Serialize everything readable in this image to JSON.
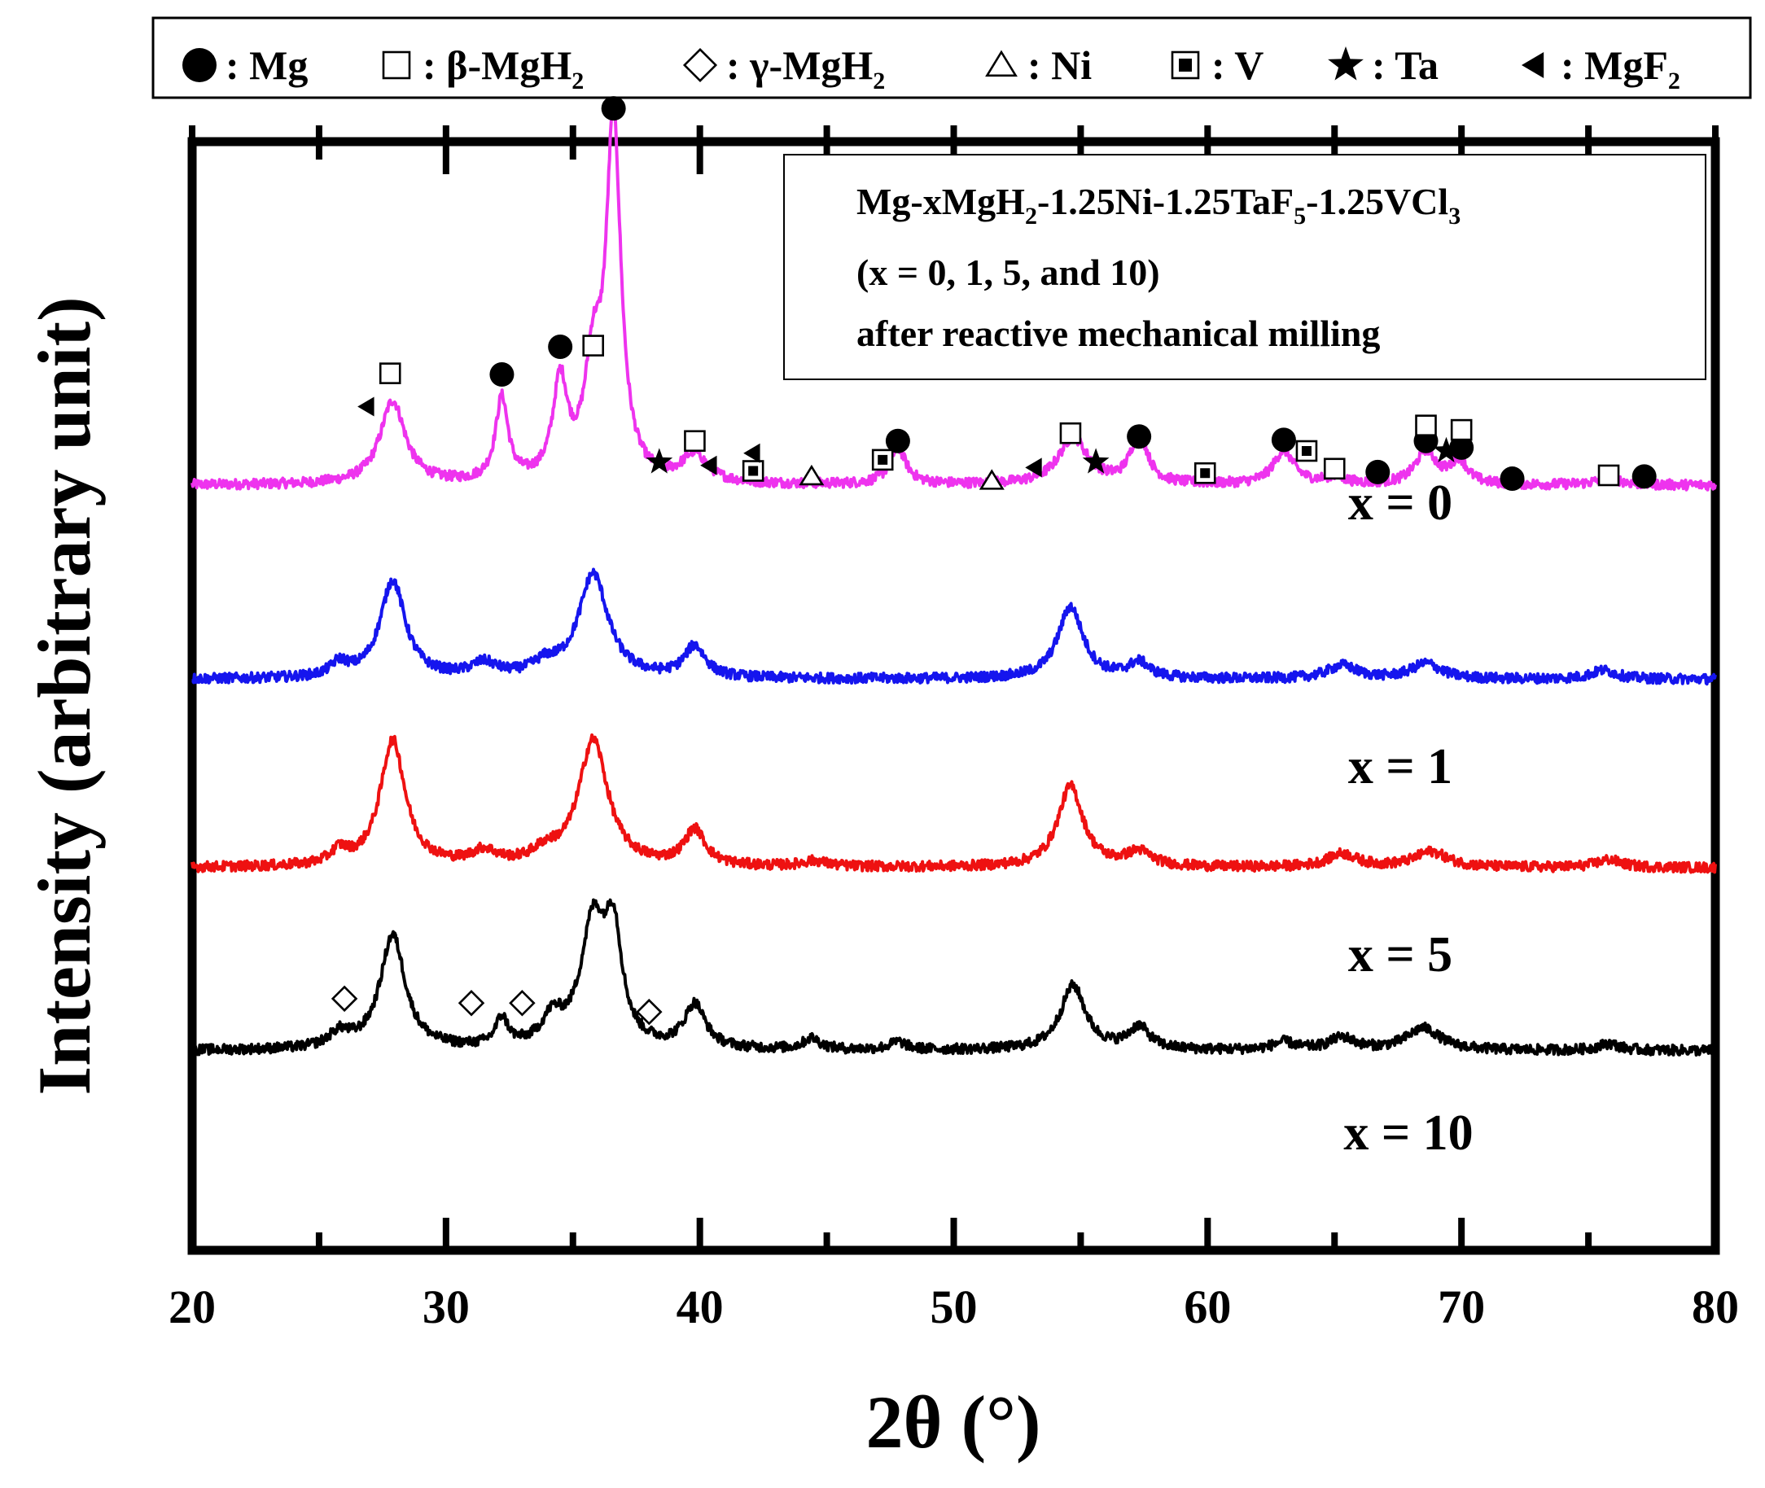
{
  "chart_data": {
    "type": "line",
    "title": "",
    "xlabel": "2θ (°)",
    "ylabel": "Intensity (arbitrary unit)",
    "xlim": [
      20,
      80
    ],
    "ylim": [
      0,
      100
    ],
    "x_ticks": [
      "20",
      "30",
      "40",
      "50",
      "60",
      "70",
      "80"
    ],
    "legend": [
      {
        "marker": "filled-circle",
        "label": ": Mg"
      },
      {
        "marker": "open-square",
        "label": ": β-MgH",
        "sub": "2"
      },
      {
        "marker": "open-diamond",
        "label": ": γ-MgH",
        "sub": "2"
      },
      {
        "marker": "open-triangle",
        "label": ": Ni"
      },
      {
        "marker": "dotted-square",
        "label": ": V"
      },
      {
        "marker": "filled-star",
        "label": ": Ta"
      },
      {
        "marker": "filled-left-triangle",
        "label": ": MgF",
        "sub": "2"
      }
    ],
    "info_box": {
      "line1": [
        {
          "t": "Mg-xMgH"
        },
        {
          "t": "2",
          "sub": true
        },
        {
          "t": "-1.25Ni-1.25TaF"
        },
        {
          "t": "5",
          "sub": true
        },
        {
          "t": "-1.25VCl"
        },
        {
          "t": "3",
          "sub": true
        }
      ],
      "line2": "(x = 0, 1, 5, and 10)",
      "line3": "after reactive mechanical milling"
    },
    "series": [
      {
        "name": "x = 0",
        "color": "#ee33ee",
        "baseline": 69,
        "peaks": [
          [
            27.9,
            7.5,
            0.6
          ],
          [
            32.2,
            7.5,
            0.3
          ],
          [
            34.5,
            8.7,
            0.35
          ],
          [
            35.8,
            9.5,
            0.4
          ],
          [
            36.6,
            32,
            0.35
          ],
          [
            39.8,
            2.5,
            0.6
          ],
          [
            47.8,
            3.2,
            0.4
          ],
          [
            54.7,
            4.2,
            0.7
          ],
          [
            57.3,
            4.5,
            0.4
          ],
          [
            63.0,
            3.0,
            0.5
          ],
          [
            65.0,
            0.6,
            0.5
          ],
          [
            68.6,
            3.0,
            0.5
          ],
          [
            69.9,
            2.1,
            0.4
          ],
          [
            75.8,
            0.6,
            0.6
          ]
        ],
        "markers": [
          {
            "s": "circle",
            "x": 32.2,
            "y": 79
          },
          {
            "s": "circle",
            "x": 34.5,
            "y": 81.5
          },
          {
            "s": "circle",
            "x": 36.6,
            "y": 103
          },
          {
            "s": "circle",
            "x": 47.8,
            "y": 73
          },
          {
            "s": "circle",
            "x": 57.3,
            "y": 73.4
          },
          {
            "s": "circle",
            "x": 63.0,
            "y": 73.1
          },
          {
            "s": "circle",
            "x": 66.7,
            "y": 70.2
          },
          {
            "s": "circle",
            "x": 68.6,
            "y": 73
          },
          {
            "s": "circle",
            "x": 70.0,
            "y": 72.4
          },
          {
            "s": "circle",
            "x": 72.0,
            "y": 69.6
          },
          {
            "s": "circle",
            "x": 77.2,
            "y": 69.8
          },
          {
            "s": "square",
            "x": 27.8,
            "y": 79.1
          },
          {
            "s": "square",
            "x": 35.8,
            "y": 81.6
          },
          {
            "s": "square",
            "x": 39.8,
            "y": 73
          },
          {
            "s": "square",
            "x": 54.6,
            "y": 73.7
          },
          {
            "s": "square",
            "x": 65.0,
            "y": 70.5
          },
          {
            "s": "square",
            "x": 68.6,
            "y": 74.4
          },
          {
            "s": "square",
            "x": 70.0,
            "y": 74
          },
          {
            "s": "square",
            "x": 75.8,
            "y": 69.9
          },
          {
            "s": "vsquare",
            "x": 42.1,
            "y": 70.3
          },
          {
            "s": "vsquare",
            "x": 47.2,
            "y": 71.3
          },
          {
            "s": "vsquare",
            "x": 59.9,
            "y": 70.1
          },
          {
            "s": "vsquare",
            "x": 63.9,
            "y": 72.1
          },
          {
            "s": "triangle",
            "x": 44.4,
            "y": 69.8
          },
          {
            "s": "triangle",
            "x": 51.5,
            "y": 69.4
          },
          {
            "s": "star",
            "x": 38.4,
            "y": 71.1
          },
          {
            "s": "star",
            "x": 55.6,
            "y": 71.1
          },
          {
            "s": "star",
            "x": 69.4,
            "y": 72.1
          },
          {
            "s": "ltri",
            "x": 26.9,
            "y": 76.1
          },
          {
            "s": "ltri",
            "x": 40.4,
            "y": 70.8
          },
          {
            "s": "ltri",
            "x": 42.1,
            "y": 71.9
          },
          {
            "s": "ltri",
            "x": 53.2,
            "y": 70.6
          }
        ]
      },
      {
        "name": "x = 1",
        "color": "#1515ee",
        "baseline": 51.5,
        "peaks": [
          [
            25.8,
            1.2,
            0.4
          ],
          [
            27.9,
            8.8,
            0.6
          ],
          [
            31.5,
            1.2,
            0.6
          ],
          [
            33.9,
            1.0,
            0.6
          ],
          [
            35.8,
            9.4,
            0.7
          ],
          [
            39.8,
            2.8,
            0.5
          ],
          [
            54.6,
            6.5,
            0.6
          ],
          [
            57.3,
            1.4,
            0.5
          ],
          [
            65.3,
            1.2,
            0.7
          ],
          [
            68.6,
            1.4,
            0.7
          ],
          [
            75.6,
            0.8,
            0.6
          ]
        ],
        "markers": []
      },
      {
        "name": "x = 5",
        "color": "#ee1111",
        "baseline": 34.5,
        "peaks": [
          [
            25.8,
            1.2,
            0.4
          ],
          [
            27.9,
            11.4,
            0.6
          ],
          [
            31.5,
            1.2,
            0.6
          ],
          [
            33.9,
            1.0,
            0.6
          ],
          [
            35.8,
            11.4,
            0.7
          ],
          [
            39.8,
            3.2,
            0.5
          ],
          [
            44.5,
            0.5,
            0.6
          ],
          [
            54.6,
            7.3,
            0.6
          ],
          [
            57.3,
            1.3,
            0.6
          ],
          [
            65.3,
            1.2,
            0.7
          ],
          [
            68.8,
            1.4,
            0.8
          ],
          [
            75.8,
            0.7,
            0.6
          ]
        ],
        "markers": []
      },
      {
        "name": "x = 10",
        "color": "#000000",
        "baseline": 18,
        "peaks": [
          [
            25.8,
            1.3,
            0.5
          ],
          [
            27.9,
            10.3,
            0.6
          ],
          [
            32.2,
            2.5,
            0.3
          ],
          [
            34.2,
            2.4,
            0.5
          ],
          [
            35.8,
            11.0,
            0.6
          ],
          [
            36.6,
            9.2,
            0.4
          ],
          [
            39.8,
            3.9,
            0.5
          ],
          [
            44.4,
            1.0,
            0.4
          ],
          [
            47.8,
            0.7,
            0.4
          ],
          [
            54.7,
            5.8,
            0.6
          ],
          [
            57.3,
            2.0,
            0.5
          ],
          [
            63.0,
            0.7,
            0.5
          ],
          [
            65.3,
            1.1,
            0.6
          ],
          [
            68.5,
            2.0,
            0.8
          ],
          [
            75.8,
            0.6,
            0.5
          ]
        ],
        "markers": [
          {
            "s": "diamond",
            "x": 26.0,
            "y": 22.7
          },
          {
            "s": "diamond",
            "x": 31.0,
            "y": 22.3
          },
          {
            "s": "diamond",
            "x": 33.0,
            "y": 22.3
          },
          {
            "s": "diamond",
            "x": 38.0,
            "y": 21.5
          }
        ]
      }
    ]
  }
}
